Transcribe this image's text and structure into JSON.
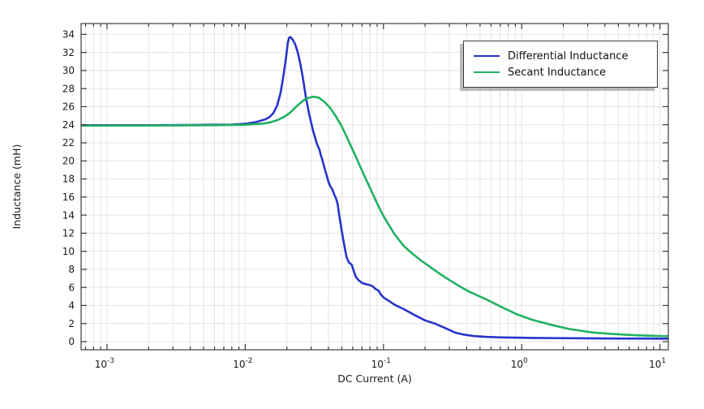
{
  "chart_data": {
    "type": "line",
    "title": "",
    "xlabel": "DC Current (A)",
    "ylabel": "Inductance (mH)",
    "xscale": "log",
    "xlim": [
      0.00065,
      11.5
    ],
    "ylim": [
      -0.9,
      35.2
    ],
    "x_major_tick_exponents": [
      -3,
      -2,
      -1,
      0,
      1
    ],
    "y_ticks": [
      0,
      2,
      4,
      6,
      8,
      10,
      12,
      14,
      16,
      18,
      20,
      22,
      24,
      26,
      28,
      30,
      32,
      34
    ],
    "grid": true,
    "legend_position": "top-right",
    "colors": {
      "grid": "#e4e4e4",
      "frame": "#3c3c3c",
      "tick_text": "#1a1a1a",
      "background": "#ffffff"
    },
    "series": [
      {
        "name": "Differential Inductance",
        "color": "#2634cc",
        "points": [
          [
            0.00065,
            23.95
          ],
          [
            0.001,
            23.95
          ],
          [
            0.002,
            23.95
          ],
          [
            0.004,
            23.97
          ],
          [
            0.006,
            24.0
          ],
          [
            0.008,
            24.02
          ],
          [
            0.01,
            24.1
          ],
          [
            0.012,
            24.3
          ],
          [
            0.014,
            24.6
          ],
          [
            0.015,
            24.85
          ],
          [
            0.016,
            25.3
          ],
          [
            0.017,
            26.1
          ],
          [
            0.018,
            27.5
          ],
          [
            0.019,
            29.6
          ],
          [
            0.0198,
            31.6
          ],
          [
            0.0203,
            33.0
          ],
          [
            0.0208,
            33.65
          ],
          [
            0.0213,
            33.7
          ],
          [
            0.022,
            33.45
          ],
          [
            0.023,
            32.9
          ],
          [
            0.024,
            32.0
          ],
          [
            0.025,
            30.8
          ],
          [
            0.026,
            29.4
          ],
          [
            0.0275,
            27.0
          ],
          [
            0.029,
            25.2
          ],
          [
            0.031,
            23.3
          ],
          [
            0.033,
            21.9
          ],
          [
            0.0345,
            21.2
          ],
          [
            0.035,
            20.8
          ],
          [
            0.036,
            20.2
          ],
          [
            0.0375,
            19.2
          ],
          [
            0.039,
            18.3
          ],
          [
            0.04,
            17.7
          ],
          [
            0.0412,
            17.2
          ],
          [
            0.0425,
            16.9
          ],
          [
            0.044,
            16.3
          ],
          [
            0.0455,
            15.8
          ],
          [
            0.0465,
            15.3
          ],
          [
            0.048,
            13.9
          ],
          [
            0.05,
            12.2
          ],
          [
            0.052,
            10.7
          ],
          [
            0.054,
            9.4
          ],
          [
            0.056,
            8.8
          ],
          [
            0.059,
            8.5
          ],
          [
            0.061,
            7.8
          ],
          [
            0.063,
            7.2
          ],
          [
            0.066,
            6.8
          ],
          [
            0.07,
            6.5
          ],
          [
            0.075,
            6.35
          ],
          [
            0.08,
            6.25
          ],
          [
            0.084,
            6.1
          ],
          [
            0.088,
            5.8
          ],
          [
            0.092,
            5.65
          ],
          [
            0.096,
            5.2
          ],
          [
            0.1,
            4.9
          ],
          [
            0.12,
            4.1
          ],
          [
            0.14,
            3.6
          ],
          [
            0.17,
            2.9
          ],
          [
            0.2,
            2.35
          ],
          [
            0.24,
            1.95
          ],
          [
            0.28,
            1.5
          ],
          [
            0.33,
            1.0
          ],
          [
            0.38,
            0.78
          ],
          [
            0.45,
            0.62
          ],
          [
            0.55,
            0.53
          ],
          [
            0.7,
            0.47
          ],
          [
            0.9,
            0.44
          ],
          [
            1.2,
            0.41
          ],
          [
            1.7,
            0.39
          ],
          [
            2.5,
            0.37
          ],
          [
            4.0,
            0.35
          ],
          [
            6.0,
            0.34
          ],
          [
            8.0,
            0.34
          ],
          [
            10,
            0.33
          ],
          [
            11.5,
            0.33
          ]
        ]
      },
      {
        "name": "Secant Inductance",
        "color": "#20b162",
        "points": [
          [
            0.00065,
            23.9
          ],
          [
            0.001,
            23.9
          ],
          [
            0.003,
            23.92
          ],
          [
            0.006,
            23.95
          ],
          [
            0.01,
            24.0
          ],
          [
            0.013,
            24.1
          ],
          [
            0.015,
            24.25
          ],
          [
            0.017,
            24.5
          ],
          [
            0.019,
            24.85
          ],
          [
            0.021,
            25.3
          ],
          [
            0.023,
            25.9
          ],
          [
            0.025,
            26.4
          ],
          [
            0.027,
            26.8
          ],
          [
            0.029,
            27.0
          ],
          [
            0.031,
            27.1
          ],
          [
            0.034,
            27.0
          ],
          [
            0.037,
            26.6
          ],
          [
            0.041,
            25.9
          ],
          [
            0.045,
            25.0
          ],
          [
            0.05,
            23.8
          ],
          [
            0.056,
            22.2
          ],
          [
            0.063,
            20.5
          ],
          [
            0.071,
            18.7
          ],
          [
            0.08,
            17.0
          ],
          [
            0.09,
            15.3
          ],
          [
            0.1,
            13.9
          ],
          [
            0.12,
            11.9
          ],
          [
            0.14,
            10.6
          ],
          [
            0.16,
            9.8
          ],
          [
            0.19,
            8.9
          ],
          [
            0.23,
            8.0
          ],
          [
            0.28,
            7.1
          ],
          [
            0.34,
            6.3
          ],
          [
            0.42,
            5.5
          ],
          [
            0.55,
            4.7
          ],
          [
            0.7,
            3.9
          ],
          [
            0.93,
            3.0
          ],
          [
            1.2,
            2.4
          ],
          [
            1.7,
            1.8
          ],
          [
            2.2,
            1.4
          ],
          [
            3.3,
            1.0
          ],
          [
            4.5,
            0.85
          ],
          [
            6.4,
            0.72
          ],
          [
            8.0,
            0.67
          ],
          [
            10,
            0.62
          ],
          [
            11.5,
            0.6
          ]
        ]
      }
    ]
  }
}
